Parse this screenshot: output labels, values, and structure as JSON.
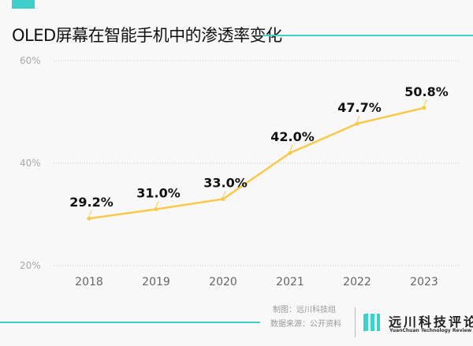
{
  "title": "OLED屏幕在智能手机中的渗透率变化",
  "colors": {
    "accent": "#3ecfca",
    "line": "#f8c94b",
    "grid": "#cccccc"
  },
  "chart_data": {
    "type": "line",
    "title": "OLED屏幕在智能手机中的渗透率变化",
    "categories": [
      "2018",
      "2019",
      "2020",
      "2021",
      "2022",
      "2023"
    ],
    "values": [
      29.2,
      31.0,
      33.0,
      42.0,
      47.7,
      50.8
    ],
    "data_labels": [
      "29.2%",
      "31.0%",
      "33.0%",
      "42.0%",
      "47.7%",
      "50.8%"
    ],
    "yticks": [
      "20%",
      "40%",
      "60%"
    ],
    "ylim": [
      20,
      60
    ],
    "grid": true
  },
  "footer": {
    "credit": "制图：远川科技组",
    "source": "数据来源：公开资料",
    "brand_cn": "远川科技评论",
    "brand_en": "YuanChuan Technology Review"
  }
}
